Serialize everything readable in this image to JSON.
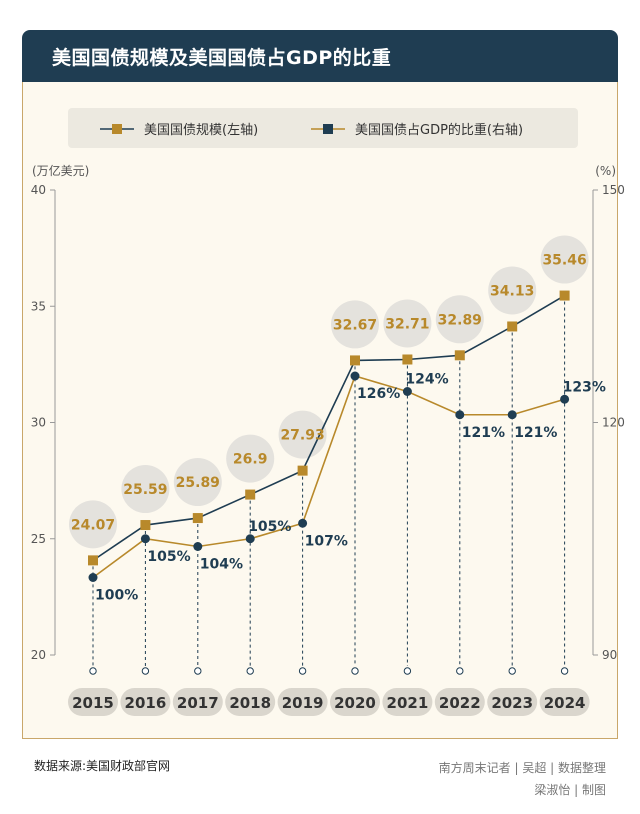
{
  "title": "美国国债规模及美国国债占GDP的比重",
  "legend": {
    "left_series": "美国国债规模(左轴)",
    "right_series": "美国国债占GDP的比重(右轴)"
  },
  "axes": {
    "left_unit": "(万亿美元)",
    "right_unit": "(%)",
    "left_ticks": [
      "40",
      "35",
      "30",
      "25",
      "20"
    ],
    "right_ticks": [
      "150",
      "120",
      "90"
    ]
  },
  "colors": {
    "navy": "#1f3d52",
    "gold": "#b8892b",
    "bubble": "#e4e2dd",
    "year_pill": "#dad6cd",
    "card_bg": "#fdf9ef",
    "card_border": "#c9a76a"
  },
  "chart_data": {
    "type": "line",
    "categories": [
      "2015",
      "2016",
      "2017",
      "2018",
      "2019",
      "2020",
      "2021",
      "2022",
      "2023",
      "2024"
    ],
    "series": [
      {
        "name": "美国国债规模(左轴)",
        "axis": "left",
        "color": "#b8892b",
        "marker": "square",
        "values": [
          24.07,
          25.59,
          25.89,
          26.9,
          27.93,
          32.67,
          32.71,
          32.89,
          34.13,
          35.46
        ],
        "labels": [
          "24.07",
          "25.59",
          "25.89",
          "26.9",
          "27.93",
          "32.67",
          "32.71",
          "32.89",
          "34.13",
          "35.46"
        ]
      },
      {
        "name": "美国国债占GDP的比重(右轴)",
        "axis": "right",
        "color": "#1f3d52",
        "marker": "circle",
        "values": [
          100,
          105,
          104,
          105,
          107,
          126,
          124,
          121,
          121,
          123
        ],
        "labels": [
          "100%",
          "105%",
          "104%",
          "105%",
          "107%",
          "126%",
          "124%",
          "121%",
          "121%",
          "123%"
        ]
      }
    ],
    "left_axis": {
      "ylim": [
        20,
        40
      ],
      "ticks": [
        20,
        25,
        30,
        35,
        40
      ]
    },
    "right_axis": {
      "ylim": [
        90,
        150
      ],
      "ticks": [
        90,
        120,
        150
      ]
    },
    "legend_position": "top",
    "grid": false
  },
  "credits": {
    "source": "数据来源:美国财政部官网",
    "reporter": "南方周末记者 | 吴超 | 数据整理",
    "designer": "梁淑怡 | 制图"
  }
}
